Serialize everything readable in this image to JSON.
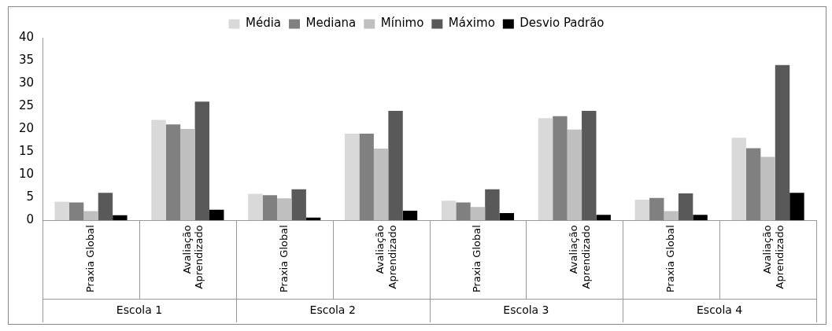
{
  "chart_data": {
    "type": "bar",
    "categories": [
      "Praxia Global",
      "Avaliação Aprendizado",
      "Praxia Global",
      "Avaliação Aprendizado",
      "Praxia Global",
      "Avaliação Aprendizado",
      "Praxia Global",
      "Avaliação Aprendizado"
    ],
    "series": [
      {
        "name": "Média",
        "color": "#d9d9d9",
        "values": [
          4.1,
          22,
          5.8,
          19,
          4.3,
          22.4,
          4.5,
          18.1
        ]
      },
      {
        "name": "Mediana",
        "color": "#808080",
        "values": [
          3.9,
          21,
          5.5,
          19,
          3.9,
          22.8,
          4.9,
          15.8
        ]
      },
      {
        "name": "Mínimo",
        "color": "#bfbfbf",
        "values": [
          2,
          20,
          4.8,
          15.7,
          2.9,
          19.9,
          2,
          13.9
        ]
      },
      {
        "name": "Máximo",
        "color": "#595959",
        "values": [
          6,
          26,
          6.8,
          24,
          6.8,
          24,
          5.9,
          34
        ]
      },
      {
        "name": "Desvio Padrão",
        "color": "#000000",
        "values": [
          1.1,
          2.3,
          0.6,
          2.1,
          1.6,
          1.2,
          1.2,
          6
        ]
      }
    ],
    "annotations": [
      "Escola 1",
      "Escola 2",
      "Escola 3",
      "Escola 4"
    ],
    "ylim": [
      0,
      40
    ],
    "yticks": [
      0,
      5,
      10,
      15,
      20,
      25,
      30,
      35,
      40
    ],
    "grid": false,
    "legend": "top"
  }
}
